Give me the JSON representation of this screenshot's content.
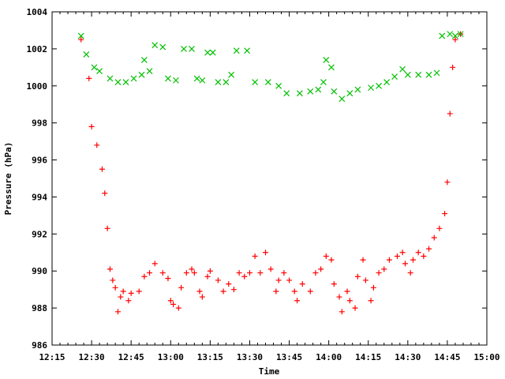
{
  "chart_data": {
    "type": "scatter",
    "title": "",
    "xlabel": "Time",
    "ylabel": "Pressure (hPa)",
    "xlim": [
      "12:15",
      "15:00"
    ],
    "ylim": [
      986,
      1004
    ],
    "x_ticks": [
      "12:15",
      "12:30",
      "12:45",
      "13:00",
      "13:15",
      "13:30",
      "13:45",
      "14:00",
      "14:15",
      "14:30",
      "14:45",
      "15:00"
    ],
    "y_ticks": [
      "986",
      "988",
      "990",
      "992",
      "994",
      "996",
      "998",
      "1000",
      "1002",
      "1004"
    ],
    "grid": false,
    "legend": "none",
    "series": [
      {
        "marker": "plus",
        "color": "#ff0000",
        "points": [
          [
            "12:26",
            1002.5
          ],
          [
            "12:29",
            1000.4
          ],
          [
            "12:30",
            997.8
          ],
          [
            "12:32",
            996.8
          ],
          [
            "12:34",
            995.5
          ],
          [
            "12:35",
            994.2
          ],
          [
            "12:36",
            992.3
          ],
          [
            "12:37",
            990.1
          ],
          [
            "12:38",
            989.5
          ],
          [
            "12:39",
            989.1
          ],
          [
            "12:40",
            987.8
          ],
          [
            "12:41",
            988.6
          ],
          [
            "12:42",
            988.9
          ],
          [
            "12:44",
            988.4
          ],
          [
            "12:45",
            988.8
          ],
          [
            "12:48",
            988.9
          ],
          [
            "12:50",
            989.7
          ],
          [
            "12:52",
            989.9
          ],
          [
            "12:54",
            990.4
          ],
          [
            "12:57",
            989.9
          ],
          [
            "12:59",
            989.6
          ],
          [
            "13:00",
            988.4
          ],
          [
            "13:01",
            988.2
          ],
          [
            "13:03",
            988.0
          ],
          [
            "13:04",
            989.1
          ],
          [
            "13:06",
            989.9
          ],
          [
            "13:08",
            990.1
          ],
          [
            "13:09",
            989.9
          ],
          [
            "13:11",
            988.9
          ],
          [
            "13:12",
            988.6
          ],
          [
            "13:14",
            989.7
          ],
          [
            "13:15",
            990.0
          ],
          [
            "13:18",
            989.5
          ],
          [
            "13:20",
            988.9
          ],
          [
            "13:22",
            989.3
          ],
          [
            "13:24",
            989.0
          ],
          [
            "13:26",
            989.9
          ],
          [
            "13:28",
            989.7
          ],
          [
            "13:30",
            989.9
          ],
          [
            "13:32",
            990.8
          ],
          [
            "13:34",
            989.9
          ],
          [
            "13:36",
            991.0
          ],
          [
            "13:38",
            990.1
          ],
          [
            "13:40",
            988.9
          ],
          [
            "13:41",
            989.5
          ],
          [
            "13:43",
            989.9
          ],
          [
            "13:45",
            989.5
          ],
          [
            "13:47",
            988.9
          ],
          [
            "13:48",
            988.4
          ],
          [
            "13:50",
            989.3
          ],
          [
            "13:53",
            988.9
          ],
          [
            "13:55",
            989.9
          ],
          [
            "13:57",
            990.1
          ],
          [
            "13:59",
            990.8
          ],
          [
            "14:01",
            990.6
          ],
          [
            "14:02",
            989.3
          ],
          [
            "14:04",
            988.6
          ],
          [
            "14:05",
            987.8
          ],
          [
            "14:07",
            988.9
          ],
          [
            "14:08",
            988.4
          ],
          [
            "14:10",
            988.0
          ],
          [
            "14:11",
            989.7
          ],
          [
            "14:13",
            990.6
          ],
          [
            "14:14",
            989.5
          ],
          [
            "14:16",
            988.4
          ],
          [
            "14:17",
            989.1
          ],
          [
            "14:19",
            989.9
          ],
          [
            "14:21",
            990.1
          ],
          [
            "14:23",
            990.6
          ],
          [
            "14:26",
            990.8
          ],
          [
            "14:28",
            991.0
          ],
          [
            "14:29",
            990.4
          ],
          [
            "14:31",
            989.9
          ],
          [
            "14:32",
            990.6
          ],
          [
            "14:34",
            991.0
          ],
          [
            "14:36",
            990.8
          ],
          [
            "14:38",
            991.2
          ],
          [
            "14:40",
            991.8
          ],
          [
            "14:42",
            992.3
          ],
          [
            "14:44",
            993.1
          ],
          [
            "14:45",
            994.8
          ],
          [
            "14:46",
            998.5
          ],
          [
            "14:47",
            1001.0
          ],
          [
            "14:48",
            1002.5
          ],
          [
            "14:50",
            1002.8
          ]
        ]
      },
      {
        "marker": "cross",
        "color": "#00c000",
        "points": [
          [
            "12:26",
            1002.7
          ],
          [
            "12:28",
            1001.7
          ],
          [
            "12:31",
            1001.0
          ],
          [
            "12:33",
            1000.8
          ],
          [
            "12:37",
            1000.4
          ],
          [
            "12:40",
            1000.2
          ],
          [
            "12:43",
            1000.2
          ],
          [
            "12:46",
            1000.4
          ],
          [
            "12:49",
            1000.6
          ],
          [
            "12:50",
            1001.4
          ],
          [
            "12:52",
            1000.8
          ],
          [
            "12:54",
            1002.2
          ],
          [
            "12:57",
            1002.1
          ],
          [
            "12:59",
            1000.4
          ],
          [
            "13:02",
            1000.3
          ],
          [
            "13:05",
            1002.0
          ],
          [
            "13:08",
            1002.0
          ],
          [
            "13:10",
            1000.4
          ],
          [
            "13:12",
            1000.3
          ],
          [
            "13:14",
            1001.8
          ],
          [
            "13:16",
            1001.8
          ],
          [
            "13:18",
            1000.2
          ],
          [
            "13:21",
            1000.2
          ],
          [
            "13:23",
            1000.6
          ],
          [
            "13:25",
            1001.9
          ],
          [
            "13:29",
            1001.9
          ],
          [
            "13:32",
            1000.2
          ],
          [
            "13:37",
            1000.2
          ],
          [
            "13:41",
            1000.0
          ],
          [
            "13:44",
            999.6
          ],
          [
            "13:49",
            999.6
          ],
          [
            "13:53",
            999.7
          ],
          [
            "13:56",
            999.8
          ],
          [
            "13:58",
            1000.2
          ],
          [
            "13:59",
            1001.4
          ],
          [
            "14:01",
            1001.0
          ],
          [
            "14:02",
            999.7
          ],
          [
            "14:05",
            999.3
          ],
          [
            "14:08",
            999.6
          ],
          [
            "14:11",
            999.8
          ],
          [
            "14:16",
            999.9
          ],
          [
            "14:19",
            1000.0
          ],
          [
            "14:22",
            1000.2
          ],
          [
            "14:25",
            1000.5
          ],
          [
            "14:28",
            1000.9
          ],
          [
            "14:30",
            1000.6
          ],
          [
            "14:34",
            1000.6
          ],
          [
            "14:38",
            1000.6
          ],
          [
            "14:41",
            1000.7
          ],
          [
            "14:43",
            1002.7
          ],
          [
            "14:46",
            1002.8
          ],
          [
            "14:48",
            1002.7
          ],
          [
            "14:50",
            1002.8
          ]
        ]
      }
    ]
  }
}
